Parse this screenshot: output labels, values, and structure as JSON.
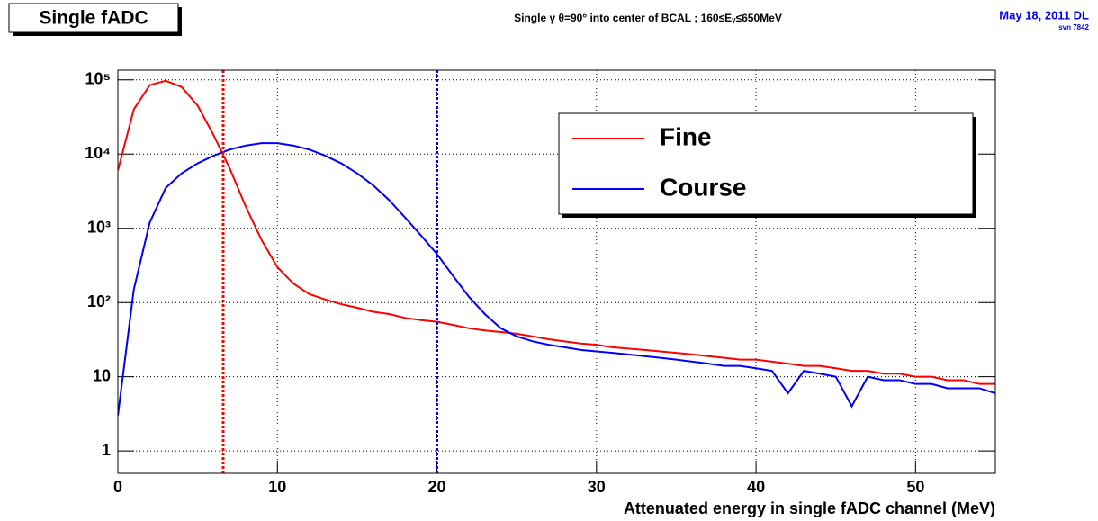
{
  "chart_data": {
    "type": "line",
    "title": "Single fADC",
    "subtitle": "Single γ θ=90° into center of BCAL ; 160≤Eᵧ≤650MeV",
    "date": "May 18, 2011 DL",
    "version": "svn 7842",
    "x_label": "Attenuated energy in single fADC channel (MeV)",
    "x": [
      0,
      1,
      2,
      3,
      4,
      5,
      6,
      7,
      8,
      9,
      10,
      11,
      12,
      13,
      14,
      15,
      16,
      17,
      18,
      19,
      20,
      21,
      22,
      23,
      24,
      25,
      26,
      27,
      28,
      29,
      30,
      31,
      32,
      33,
      34,
      35,
      36,
      37,
      38,
      39,
      40,
      41,
      42,
      43,
      44,
      45,
      46,
      47,
      48,
      49,
      50,
      51,
      52,
      53,
      54,
      55
    ],
    "series": [
      {
        "name": "Fine",
        "color": "#ff0000",
        "values": [
          6000,
          40000,
          85000,
          97000,
          80000,
          45000,
          18000,
          6500,
          2000,
          700,
          300,
          180,
          130,
          110,
          95,
          85,
          75,
          70,
          62,
          58,
          55,
          50,
          45,
          42,
          40,
          38,
          35,
          32,
          30,
          28,
          27,
          25,
          24,
          23,
          22,
          21,
          20,
          19,
          18,
          17,
          17,
          16,
          15,
          14,
          14,
          13,
          12,
          12,
          11,
          11,
          10,
          10,
          9,
          9,
          8,
          8
        ]
      },
      {
        "name": "Course",
        "color": "#0000ff",
        "values": [
          3,
          150,
          1200,
          3500,
          5500,
          7500,
          9500,
          11500,
          13000,
          14000,
          14000,
          13000,
          11500,
          9500,
          7500,
          5500,
          3800,
          2400,
          1400,
          800,
          450,
          230,
          120,
          70,
          45,
          35,
          30,
          27,
          25,
          23,
          22,
          21,
          20,
          19,
          18,
          17,
          16,
          15,
          14,
          14,
          13,
          12,
          6,
          12,
          11,
          10,
          4,
          10,
          9,
          9,
          8,
          8,
          7,
          7,
          7,
          6
        ]
      }
    ],
    "cut_lines": [
      {
        "x": 6.6,
        "color": "#ff0000"
      },
      {
        "x": 20,
        "color": "#0000ff"
      }
    ],
    "xlim": [
      0,
      55
    ],
    "xticks": [
      0,
      10,
      20,
      30,
      40,
      50
    ],
    "ylim": [
      0.5,
      135000
    ],
    "yticks": [
      1,
      10,
      {
        "value": 100,
        "label": "10²"
      },
      {
        "value": 1000,
        "label": "10³"
      },
      {
        "value": 10000,
        "label": "10⁴"
      },
      {
        "value": 100000,
        "label": "10⁵"
      }
    ],
    "log_y": true,
    "grid": true,
    "legend": "top-right"
  }
}
